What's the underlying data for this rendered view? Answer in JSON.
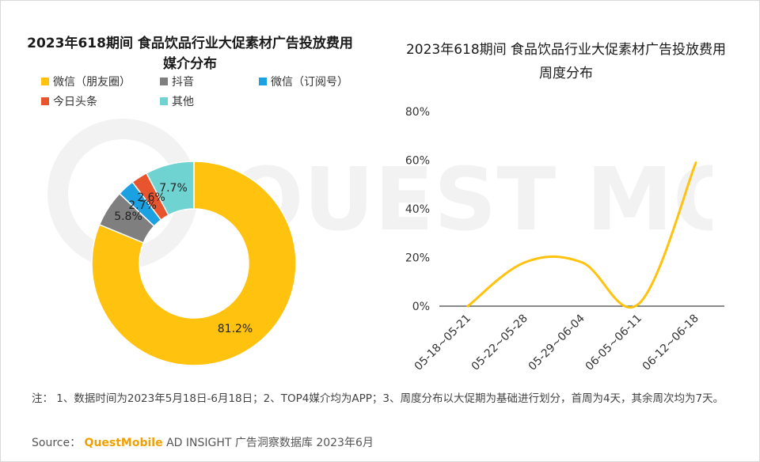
{
  "left_title": "2023年618期间 食品饮品行业大促素材广告投放费用 媒介分布",
  "right_title": "2023年618期间 食品饮品行业大促素材广告投放费用 周度分布",
  "watermark": "QUEST MOBILE",
  "colors": {
    "wechat_moments": "#FFC20E",
    "douyin": "#7F7F7F",
    "wechat_sub": "#1BA1E2",
    "toutiao": "#E8542E",
    "other": "#6FD3D1",
    "line": "#FFC20E"
  },
  "chart_data": [
    {
      "type": "pie",
      "title": "2023年618期间 食品饮品行业大促素材广告投放费用 媒介分布",
      "legend_position": "top",
      "slices": [
        {
          "label": "微信（朋友圈）",
          "value": 81.2,
          "display": "81.2%"
        },
        {
          "label": "抖音",
          "value": 5.8,
          "display": "5.8%"
        },
        {
          "label": "微信（订阅号）",
          "value": 2.7,
          "display": "2.7%"
        },
        {
          "label": "今日头条",
          "value": 2.6,
          "display": "2.6%"
        },
        {
          "label": "其他",
          "value": 7.7,
          "display": "7.7%"
        }
      ]
    },
    {
      "type": "line",
      "title": "2023年618期间 食品饮品行业大促素材广告投放费用 周度分布",
      "categories": [
        "05-18~05-21",
        "05-22~05-28",
        "05-29~06-04",
        "06-05~06-11",
        "06-12~06-18"
      ],
      "series": [
        {
          "values": [
            0,
            18,
            18,
            1,
            59
          ]
        }
      ],
      "ylim": [
        0,
        80
      ],
      "yticks": [
        "0%",
        "20%",
        "40%",
        "60%",
        "80%"
      ],
      "grid": false
    }
  ],
  "note": "注：   1、数据时间为2023年5月18日-6月18日；2、TOP4媒介均为APP；3、周度分布以大促期为基础进行划分，首周为4天，其余周次均为7天。",
  "source": {
    "prefix": "Source：",
    "brand": "QuestMobile",
    "rest": " AD INSIGHT 广告洞察数据库 2023年6月"
  }
}
